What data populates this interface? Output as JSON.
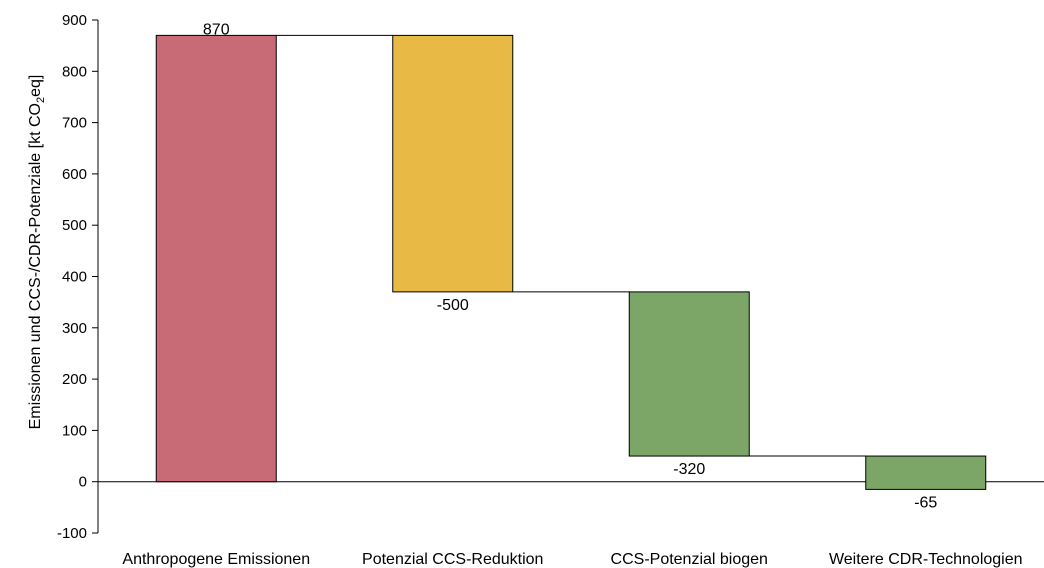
{
  "chart_data": {
    "type": "bar",
    "subtype": "waterfall",
    "categories": [
      "Anthropogene Emissionen",
      "Potenzial CCS-Reduktion",
      "CCS-Potenzial biogen",
      "Weitere CDR-Technologien"
    ],
    "values": [
      870,
      -500,
      -320,
      -65
    ],
    "value_labels": [
      "870",
      "-500",
      "-320",
      "-65"
    ],
    "bar_colors": [
      "#c96b76",
      "#e8ba45",
      "#7ba667",
      "#7ba667"
    ],
    "ylim": [
      -100,
      900
    ],
    "yticks": [
      -100,
      0,
      100,
      200,
      300,
      400,
      500,
      600,
      700,
      800,
      900
    ],
    "ylabel_parts": [
      "Emissionen und CCS-/CDR-Potenziale [kt CO",
      "2",
      "eq]"
    ],
    "xlabel": "",
    "grid": false,
    "connectors": true
  }
}
